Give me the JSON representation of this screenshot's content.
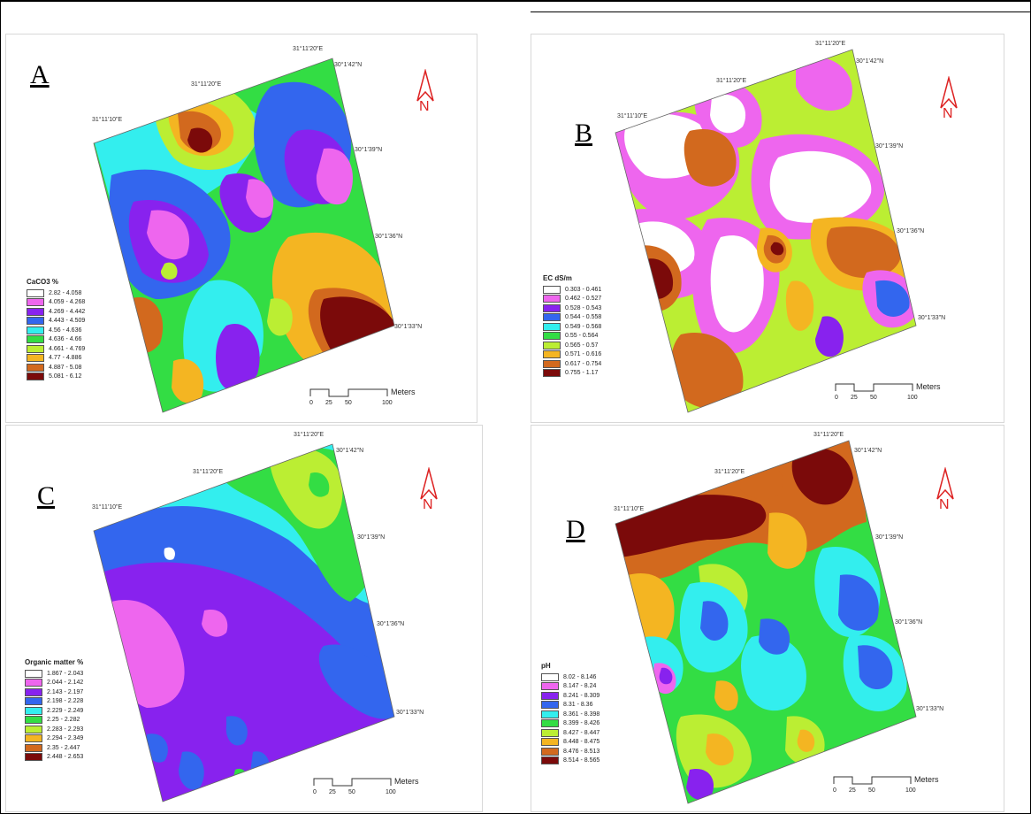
{
  "panels": [
    {
      "letter": "A",
      "coords": {
        "top": "31°11'20\"E",
        "mid": "31°11'20\"E",
        "left": "31°11'10\"E",
        "r1": "30°1'42\"N",
        "r2": "30°1'39\"N",
        "r3": "30°1'36\"N",
        "r4": "30°1'33\"N"
      },
      "legend_title": "CaCO3  %",
      "legend": [
        "2.82 - 4.058",
        "4.059 - 4.268",
        "4.269 - 4.442",
        "4.443 - 4.509",
        "4.56 - 4.636",
        "4.636 - 4.66",
        "4.661 - 4.769",
        "4.77 - 4.886",
        "4.887 - 5.08",
        "5.081 - 6.12"
      ],
      "colors": [
        "#ffffff",
        "#ee66ee",
        "#8822ee",
        "#3366ee",
        "#33eeee",
        "#33dd44",
        "#bbee33",
        "#f4b522",
        "#d2691e",
        "#7b0a0a"
      ]
    },
    {
      "letter": "B",
      "coords": {
        "top": "31°11'20\"E",
        "mid": "31°11'20\"E",
        "left": "31°11'10\"E",
        "r1": "30°1'42\"N",
        "r2": "30°1'39\"N",
        "r3": "30°1'36\"N",
        "r4": "30°1'33\"N"
      },
      "legend_title": "EC  dS/m",
      "legend": [
        "0.303 - 0.461",
        "0.462 - 0.527",
        "0.528 - 0.543",
        "0.544 - 0.558",
        "0.549 - 0.568",
        "0.55 - 0.564",
        "0.565 - 0.57",
        "0.571 - 0.616",
        "0.617 - 0.754",
        "0.755 - 1.17"
      ],
      "colors": [
        "#ffffff",
        "#ee66ee",
        "#8822ee",
        "#3366ee",
        "#33eeee",
        "#33dd44",
        "#bbee33",
        "#f4b522",
        "#d2691e",
        "#7b0a0a"
      ]
    },
    {
      "letter": "C",
      "coords": {
        "top": "31°11'20\"E",
        "mid": "31°11'20\"E",
        "left": "31°11'10\"E",
        "r1": "30°1'42\"N",
        "r2": "30°1'39\"N",
        "r3": "30°1'36\"N",
        "r4": "30°1'33\"N"
      },
      "legend_title": "Organic matter  %",
      "legend": [
        "1.867 - 2.043",
        "2.044 - 2.142",
        "2.143 - 2.197",
        "2.198 - 2.228",
        "2.229 - 2.249",
        "2.25 - 2.282",
        "2.283 - 2.293",
        "2.294 - 2.349",
        "2.35 - 2.447",
        "2.448 - 2.653"
      ],
      "colors": [
        "#ffffff",
        "#ee66ee",
        "#8822ee",
        "#3366ee",
        "#33eeee",
        "#33dd44",
        "#bbee33",
        "#f4b522",
        "#d2691e",
        "#7b0a0a"
      ]
    },
    {
      "letter": "D",
      "coords": {
        "top": "31°11'20\"E",
        "mid": "31°11'20\"E",
        "left": "31°11'10\"E",
        "r1": "30°1'42\"N",
        "r2": "30°1'39\"N",
        "r3": "30°1'36\"N",
        "r4": "30°1'33\"N"
      },
      "legend_title": "pH",
      "legend": [
        "8.02 - 8.146",
        "8.147 - 8.24",
        "8.241 - 8.309",
        "8.31 - 8.36",
        "8.361 - 8.398",
        "8.399 - 8.426",
        "8.427 - 8.447",
        "8.448 - 8.475",
        "8.476 - 8.513",
        "8.514 - 8.565"
      ],
      "colors": [
        "#ffffff",
        "#ee66ee",
        "#8822ee",
        "#3366ee",
        "#33eeee",
        "#33dd44",
        "#bbee33",
        "#f4b522",
        "#d2691e",
        "#7b0a0a"
      ]
    }
  ],
  "north_label": "N",
  "scale": {
    "ticks": [
      "0",
      "25",
      "50",
      "100"
    ],
    "unit": "Meters"
  }
}
